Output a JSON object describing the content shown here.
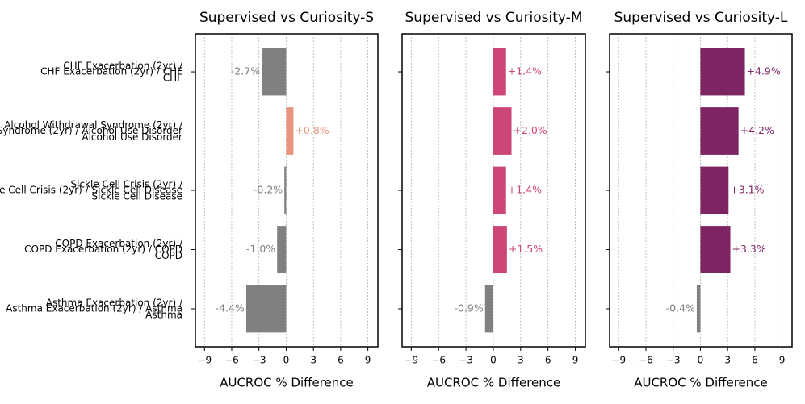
{
  "chart_data": [
    {
      "type": "barh",
      "title": "Supervised vs Curiosity-S",
      "xlabel": "AUCROC % Difference",
      "categories": [
        "CHF Exacerbation (2yr) /\nCHF",
        "Alcohol Withdrawal Syndrome (2yr) /\nAlcohol Use Disorder",
        "Sickle Cell Crisis (2yr) /\nSickle Cell Disease",
        "COPD Exacerbation (2yr) /\nCOPD",
        "Asthma Exacerbation (2yr) /\nAsthma"
      ],
      "values": [
        -2.7,
        0.8,
        -0.2,
        -1.0,
        -4.4
      ],
      "value_labels": [
        "-2.7%",
        "+0.8%",
        "-0.2%",
        "-1.0%",
        "-4.4%"
      ],
      "color": "#e8967e",
      "negative_color": "#808080",
      "xlim": [
        -10,
        10.1
      ],
      "xticks": [
        {
          "value": -9,
          "label": "−9"
        },
        {
          "value": -6,
          "label": "−6"
        },
        {
          "value": -3,
          "label": "−3"
        },
        0,
        3,
        6,
        9
      ],
      "grid": true
    },
    {
      "type": "barh",
      "title": "Supervised vs Curiosity-M",
      "xlabel": "AUCROC % Difference",
      "values": [
        1.4,
        2.0,
        1.4,
        1.5,
        -0.9
      ],
      "value_labels": [
        "+1.4%",
        "+2.0%",
        "+1.4%",
        "+1.5%",
        "-0.9%"
      ],
      "color": "#cc4778",
      "negative_color": "#808080",
      "xlim": [
        -10,
        10.1
      ],
      "xticks": [
        {
          "value": -9,
          "label": "−9"
        },
        {
          "value": -6,
          "label": "−6"
        },
        {
          "value": -3,
          "label": "−3"
        },
        0,
        3,
        6,
        9
      ],
      "grid": true
    },
    {
      "type": "barh",
      "title": "Supervised vs Curiosity-L",
      "xlabel": "AUCROC % Difference",
      "values": [
        4.9,
        4.2,
        3.1,
        3.3,
        -0.4
      ],
      "value_labels": [
        "+4.9%",
        "+4.2%",
        "+3.1%",
        "+3.3%",
        "-0.4%"
      ],
      "color": "#7e2462",
      "negative_color": "#808080",
      "xlim": [
        -10,
        10.1
      ],
      "xticks": [
        {
          "value": -9,
          "label": "−9"
        },
        {
          "value": -6,
          "label": "−6"
        },
        {
          "value": -3,
          "label": "−3"
        },
        0,
        3,
        6,
        9
      ],
      "grid": true
    }
  ]
}
